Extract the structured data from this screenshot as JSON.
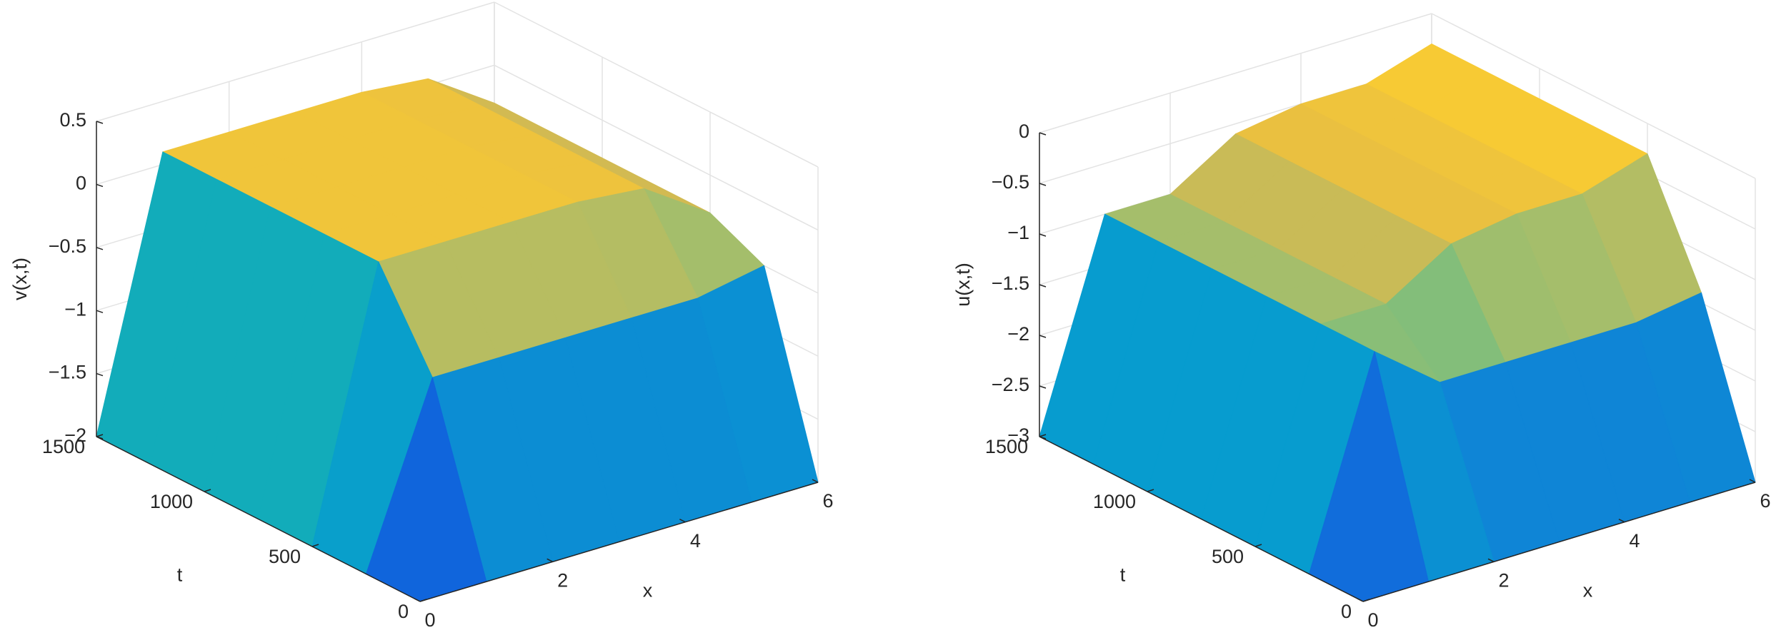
{
  "chart_data": [
    {
      "type": "surface",
      "xlabel": "x",
      "ylabel": "t",
      "zlabel": "v(x,t)",
      "x": [
        0,
        1,
        2,
        3,
        4,
        5,
        6
      ],
      "y": [
        0,
        250,
        500,
        750,
        1000,
        1250,
        1500
      ],
      "z": [
        [
          -2,
          -2,
          -2,
          -2,
          -2,
          -2,
          -2
        ],
        [
          -2,
          -0.6,
          -0.6,
          -0.6,
          -0.6,
          -0.6,
          -0.5
        ],
        [
          -2,
          0.1,
          0.1,
          0.1,
          0.1,
          0.05,
          -0.3
        ],
        [
          -2,
          0.1,
          0.1,
          0.1,
          0.1,
          0.05,
          -0.3
        ],
        [
          -2,
          0.1,
          0.1,
          0.1,
          0.1,
          0.05,
          -0.3
        ],
        [
          -2,
          0.1,
          0.1,
          0.1,
          0.1,
          0.05,
          -0.3
        ],
        [
          -2,
          0.1,
          0.1,
          0.1,
          0.1,
          0.05,
          -0.3
        ]
      ],
      "xlim": [
        0,
        6
      ],
      "ylim": [
        0,
        1500
      ],
      "zlim": [
        -2,
        0.5
      ],
      "xticks": [
        0,
        2,
        4,
        6
      ],
      "yticks": [
        0,
        500,
        1000,
        1500
      ],
      "zticks": [
        0.5,
        0,
        {
          "value": -0.5,
          "label": "−0.5"
        },
        {
          "value": -1,
          "label": "−1"
        },
        {
          "value": -1.5,
          "label": "−1.5"
        },
        {
          "value": -2,
          "label": "−2"
        }
      ],
      "grid": true,
      "colormap": "parula"
    },
    {
      "type": "surface",
      "xlabel": "x",
      "ylabel": "t",
      "zlabel": "u(x,t)",
      "x": [
        0,
        1,
        2,
        3,
        4,
        5,
        6
      ],
      "y": [
        0,
        250,
        500,
        750,
        1000,
        1250,
        1500
      ],
      "z": [
        [
          -3,
          -3,
          -3,
          -3,
          -3,
          -3,
          -3
        ],
        [
          -3,
          -1,
          -1.5,
          -1.5,
          -1.5,
          -1.5,
          -1.4
        ],
        [
          -3,
          -1,
          -1,
          -0.6,
          -0.5,
          -0.5,
          -0.3
        ],
        [
          -3,
          -1,
          -1,
          -0.6,
          -0.5,
          -0.5,
          -0.3
        ],
        [
          -3,
          -1,
          -1,
          -0.6,
          -0.5,
          -0.5,
          -0.3
        ],
        [
          -3,
          -1,
          -1,
          -0.6,
          -0.5,
          -0.5,
          -0.3
        ],
        [
          -3,
          -1,
          -1,
          -0.6,
          -0.5,
          -0.5,
          -0.3
        ]
      ],
      "xlim": [
        0,
        6
      ],
      "ylim": [
        0,
        1500
      ],
      "zlim": [
        -3,
        0
      ],
      "xticks": [
        0,
        2,
        4,
        6
      ],
      "yticks": [
        0,
        500,
        1000,
        1500
      ],
      "zticks": [
        0,
        {
          "value": -0.5,
          "label": "−0.5"
        },
        {
          "value": -1,
          "label": "−1"
        },
        {
          "value": -1.5,
          "label": "−1.5"
        },
        {
          "value": -2,
          "label": "−2"
        },
        {
          "value": -2.5,
          "label": "−2.5"
        },
        {
          "value": -3,
          "label": "−3"
        }
      ],
      "grid": true,
      "colormap": "parula"
    }
  ]
}
